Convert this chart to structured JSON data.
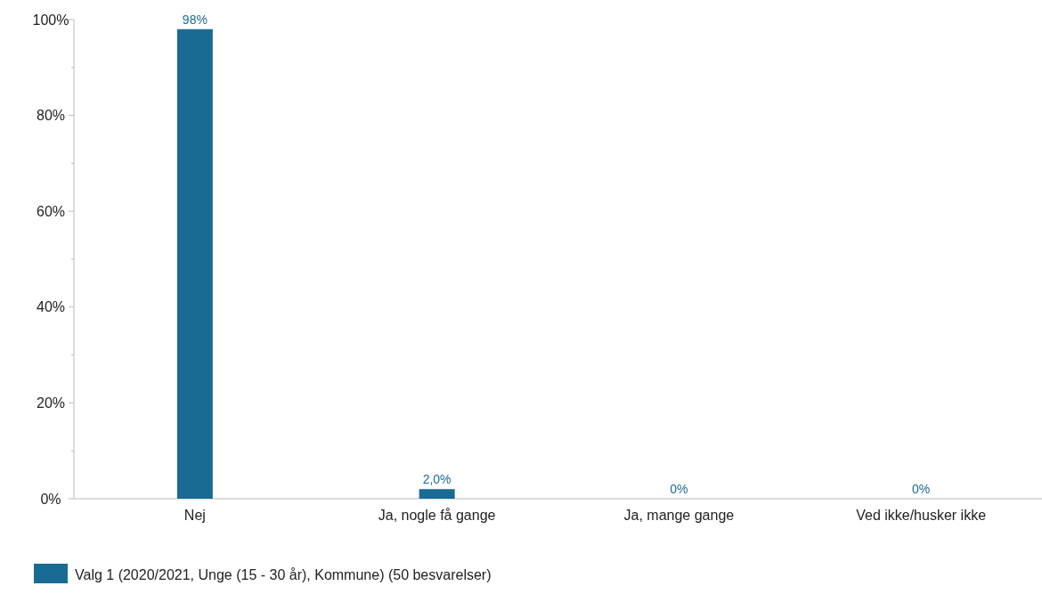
{
  "chart_data": {
    "type": "bar",
    "categories": [
      "Nej",
      "Ja, nogle få gange",
      "Ja, mange gange",
      "Ved ikke/husker ikke"
    ],
    "series": [
      {
        "name": "Valg 1 (2020/2021, Unge (15 - 30 år), Kommune) (50 besvarelser)",
        "color": "#1a6b93",
        "values": [
          98,
          2,
          0,
          0
        ],
        "value_labels": [
          "98%",
          "2,0%",
          "0%",
          "0%"
        ]
      }
    ],
    "ylim": [
      0,
      100
    ],
    "yticks": [
      {
        "value": 0,
        "label": "0%"
      },
      {
        "value": 10,
        "label": null
      },
      {
        "value": 20,
        "label": "20%"
      },
      {
        "value": 30,
        "label": null
      },
      {
        "value": 40,
        "label": "40%"
      },
      {
        "value": 50,
        "label": null
      },
      {
        "value": 60,
        "label": "60%"
      },
      {
        "value": 70,
        "label": null
      },
      {
        "value": 80,
        "label": "80%"
      },
      {
        "value": 90,
        "label": null
      },
      {
        "value": 100,
        "label": "100%"
      }
    ],
    "grid": false,
    "legend": "bottom"
  }
}
